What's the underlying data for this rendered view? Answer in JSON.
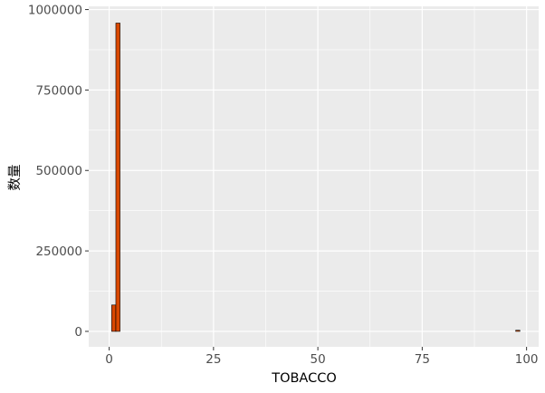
{
  "chart_data": {
    "type": "bar",
    "subtype": "histogram",
    "title": "",
    "xlabel": "TOBACCO",
    "ylabel": "数量",
    "xlim": [
      -4.9,
      102.9
    ],
    "ylim": [
      -48000,
      1010000
    ],
    "x_ticks": [
      0,
      25,
      50,
      75,
      100
    ],
    "y_ticks": [
      0,
      250000,
      500000,
      750000,
      1000000
    ],
    "x_tick_labels": [
      "0",
      "25",
      "50",
      "75",
      "100"
    ],
    "y_tick_labels": [
      "0",
      "250000",
      "500000",
      "750000",
      "1000000"
    ],
    "bin_width": 1,
    "bins": [
      {
        "x_start": 0.6,
        "x_end": 1.6,
        "value": 82000
      },
      {
        "x_start": 1.6,
        "x_end": 2.6,
        "value": 958000
      },
      {
        "x_start": 97.4,
        "x_end": 98.4,
        "value": 3500
      }
    ],
    "bar_fill": "#d94801",
    "bar_outline": "#000000",
    "panel_background": "#ebebeb",
    "grid": true,
    "grid_color": "#ffffff",
    "legend": "none"
  }
}
